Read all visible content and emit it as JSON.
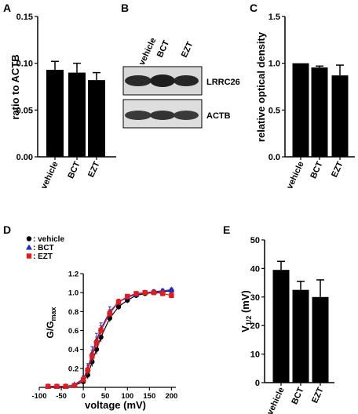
{
  "panel_labels": {
    "A": "A",
    "B": "B",
    "C": "C",
    "D": "D",
    "E": "E"
  },
  "blot": {
    "lanes": [
      "vehicle",
      "BCT",
      "EZT"
    ],
    "bands": [
      "LRRC26",
      "ACTB"
    ]
  },
  "chart_data": [
    {
      "panel": "A",
      "type": "bar",
      "categories": [
        "vehicle",
        "BCT",
        "EZT"
      ],
      "values": [
        0.093,
        0.09,
        0.082
      ],
      "errors": [
        0.009,
        0.01,
        0.008
      ],
      "ylabel": "ratio to ACTB",
      "ylim": [
        0,
        0.15
      ],
      "yticks": [
        "0.00",
        "0.05",
        "0.10",
        "0.15"
      ],
      "yticks_values": [
        0,
        0.05,
        0.1,
        0.15
      ],
      "bar_color": "#000000"
    },
    {
      "panel": "C",
      "type": "bar",
      "categories": [
        "vehicle",
        "BCT",
        "EZT"
      ],
      "values": [
        1.0,
        0.955,
        0.87
      ],
      "errors": [
        0.0,
        0.015,
        0.11
      ],
      "ylabel": "relative optical density",
      "ylim": [
        0,
        1.5
      ],
      "yticks": [
        "0.0",
        "0.5",
        "1.0",
        "1.5"
      ],
      "yticks_values": [
        0,
        0.5,
        1.0,
        1.5
      ],
      "bar_color": "#000000"
    },
    {
      "panel": "D",
      "type": "line",
      "xlabel": "voltage (mV)",
      "ylabel_main": "G/G",
      "ylabel_sub": "max",
      "xlim": [
        -100,
        210
      ],
      "ylim": [
        0,
        1.2
      ],
      "xticks": [
        "-100",
        "-50",
        "0",
        "50",
        "100",
        "150",
        "200"
      ],
      "xticks_values": [
        -100,
        -50,
        0,
        50,
        100,
        150,
        200
      ],
      "yticks": [
        "0.0",
        "0.2",
        "0.4",
        "0.6",
        "0.8",
        "1.0",
        "1.2"
      ],
      "yticks_values": [
        0,
        0.2,
        0.4,
        0.6,
        0.8,
        1.0,
        1.2
      ],
      "x": [
        -80,
        -60,
        -40,
        -20,
        0,
        10,
        20,
        30,
        40,
        60,
        80,
        100,
        120,
        140,
        160,
        180,
        200
      ],
      "series": [
        {
          "name": "vehicle",
          "marker": "circle",
          "color": "#000000",
          "values": [
            0.01,
            0.01,
            0.01,
            0.02,
            0.06,
            0.13,
            0.27,
            0.4,
            0.53,
            0.73,
            0.85,
            0.92,
            0.97,
            0.99,
            1.0,
            1.01,
            1.02
          ],
          "errors": [
            0.005,
            0.005,
            0.005,
            0.01,
            0.02,
            0.04,
            0.05,
            0.05,
            0.05,
            0.04,
            0.03,
            0.03,
            0.02,
            0.02,
            0.02,
            0.02,
            0.02
          ]
        },
        {
          "name": "BCT",
          "marker": "triangle",
          "color": "#1f2bd1",
          "values": [
            0.01,
            0.01,
            0.01,
            0.03,
            0.09,
            0.2,
            0.36,
            0.5,
            0.62,
            0.8,
            0.9,
            0.95,
            0.98,
            1.0,
            1.01,
            1.02,
            1.03
          ],
          "errors": [
            0.005,
            0.005,
            0.005,
            0.01,
            0.03,
            0.05,
            0.07,
            0.07,
            0.06,
            0.05,
            0.03,
            0.02,
            0.02,
            0.02,
            0.02,
            0.02,
            0.02
          ]
        },
        {
          "name": "EZT",
          "marker": "square",
          "color": "#e31b1b",
          "values": [
            0.01,
            0.01,
            0.01,
            0.02,
            0.08,
            0.18,
            0.33,
            0.47,
            0.6,
            0.78,
            0.9,
            0.96,
            0.99,
            1.0,
            1.0,
            0.99,
            0.97
          ],
          "errors": [
            0.005,
            0.005,
            0.005,
            0.01,
            0.03,
            0.05,
            0.06,
            0.06,
            0.05,
            0.04,
            0.03,
            0.02,
            0.02,
            0.02,
            0.02,
            0.03,
            0.03
          ]
        }
      ],
      "legend": {
        "placement": "top-left",
        "entries": [
          ": vehicle",
          ": BCT",
          ": EZT"
        ]
      }
    },
    {
      "panel": "E",
      "type": "bar",
      "categories": [
        "vehicle",
        "BCT",
        "EZT"
      ],
      "values": [
        39.5,
        32.5,
        30.0
      ],
      "errors": [
        3.0,
        3.0,
        6.0
      ],
      "ylabel_main": "V",
      "ylabel_sub": "1/2",
      "ylabel_unit": " (mV)",
      "ylim": [
        0,
        50
      ],
      "yticks": [
        "0",
        "10",
        "20",
        "30",
        "40",
        "50"
      ],
      "yticks_values": [
        0,
        10,
        20,
        30,
        40,
        50
      ],
      "bar_color": "#000000"
    }
  ]
}
